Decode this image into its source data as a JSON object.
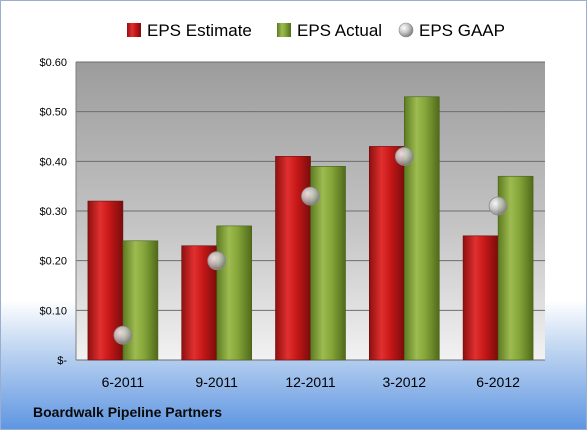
{
  "chart_data": {
    "type": "bar",
    "categories": [
      "6-2011",
      "9-2011",
      "12-2011",
      "3-2012",
      "6-2012"
    ],
    "series": [
      {
        "name": "EPS Estimate",
        "kind": "bar",
        "color": "#d82020",
        "values": [
          0.32,
          0.23,
          0.41,
          0.43,
          0.25
        ]
      },
      {
        "name": "EPS Actual",
        "kind": "bar",
        "color": "#8aaa40",
        "values": [
          0.24,
          0.27,
          0.39,
          0.53,
          0.37
        ]
      },
      {
        "name": "EPS GAAP",
        "kind": "marker",
        "color": "#a0a0a0",
        "values": [
          0.05,
          0.2,
          0.33,
          0.41,
          0.31
        ]
      }
    ],
    "ylim": [
      0,
      0.6
    ],
    "yticks": [
      0,
      0.1,
      0.2,
      0.3,
      0.4,
      0.5,
      0.6
    ],
    "ytick_labels": [
      "$-",
      "$0.10",
      "$0.20",
      "$0.30",
      "$0.40",
      "$0.50",
      "$0.60"
    ],
    "grid": true,
    "legend_position": "top",
    "footer": "Boardwalk Pipeline Partners"
  }
}
